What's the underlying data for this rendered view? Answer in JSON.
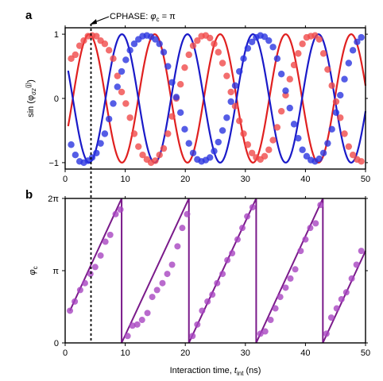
{
  "colors": {
    "red": "#e02020",
    "red_point": "#f04a4a",
    "blue": "#1a1ac8",
    "blue_point": "#2a35e0",
    "purple": "#7a1a8a",
    "purple_point": "#a845c0"
  },
  "chart_data": [
    {
      "panel": "a",
      "type": "scatter",
      "ylabel_text": "sin (φ",
      "ylabel_sub": "σz",
      "ylabel_sup": "(j)",
      "ylabel_tail": ")",
      "xlim": [
        0,
        50
      ],
      "ylim": [
        -1.1,
        1.1
      ],
      "xticks": [
        0,
        10,
        20,
        30,
        40,
        50
      ],
      "xtick_labels": [
        "0",
        "10",
        "20",
        "30",
        "40",
        "50"
      ],
      "yticks": [
        -1,
        0,
        1
      ],
      "ytick_labels": [
        "−1",
        "0",
        "1"
      ],
      "annotation": {
        "text": "CPHASE: ",
        "phi": "φ",
        "sub": "c",
        "tail": " = π",
        "x": 4.3
      },
      "series": [
        {
          "color_key": "red",
          "fit": {
            "freq": 0.0917,
            "phase_x": 4.0,
            "form": "cos"
          },
          "points": [
            [
              1,
              0.62
            ],
            [
              1.7,
              0.68
            ],
            [
              2.4,
              0.82
            ],
            [
              3.1,
              0.9
            ],
            [
              3.8,
              0.97
            ],
            [
              4.5,
              0.98
            ],
            [
              5.2,
              0.97
            ],
            [
              5.9,
              0.9
            ],
            [
              6.6,
              0.85
            ],
            [
              7.3,
              0.75
            ],
            [
              8,
              0.62
            ],
            [
              8.7,
              0.35
            ],
            [
              9.4,
              0.1
            ],
            [
              10.1,
              -0.08
            ],
            [
              10.8,
              -0.3
            ],
            [
              11.5,
              -0.55
            ],
            [
              12.2,
              -0.75
            ],
            [
              12.9,
              -0.88
            ],
            [
              13.6,
              -0.95
            ],
            [
              14.3,
              -1.0
            ],
            [
              15,
              -0.97
            ],
            [
              15.7,
              -0.88
            ],
            [
              16.4,
              -0.78
            ],
            [
              17.1,
              -0.55
            ],
            [
              17.8,
              -0.28
            ],
            [
              18.5,
              0.0
            ],
            [
              19.2,
              0.22
            ],
            [
              19.9,
              0.48
            ],
            [
              20.6,
              0.68
            ],
            [
              21.3,
              0.82
            ],
            [
              22,
              0.9
            ],
            [
              22.7,
              0.97
            ],
            [
              23.4,
              0.98
            ],
            [
              24.1,
              0.94
            ],
            [
              24.8,
              0.85
            ],
            [
              25.5,
              0.72
            ],
            [
              26.2,
              0.55
            ],
            [
              26.9,
              0.35
            ],
            [
              27.6,
              0.1
            ],
            [
              28.3,
              -0.12
            ],
            [
              29,
              -0.35
            ],
            [
              29.7,
              -0.55
            ],
            [
              30.4,
              -0.72
            ],
            [
              31.1,
              -0.85
            ],
            [
              31.8,
              -0.92
            ],
            [
              32.5,
              -0.95
            ],
            [
              33.2,
              -0.9
            ],
            [
              33.9,
              -0.8
            ],
            [
              34.6,
              -0.65
            ],
            [
              35.3,
              -0.45
            ],
            [
              36,
              -0.2
            ],
            [
              36.7,
              0.05
            ],
            [
              37.4,
              0.3
            ],
            [
              38.1,
              0.52
            ],
            [
              38.8,
              0.7
            ],
            [
              39.5,
              0.85
            ],
            [
              40.2,
              0.95
            ],
            [
              40.9,
              0.97
            ],
            [
              41.6,
              0.98
            ],
            [
              42.3,
              0.92
            ],
            [
              43,
              0.7
            ],
            [
              43.7,
              0.45
            ],
            [
              44.4,
              0.2
            ],
            [
              45.1,
              -0.05
            ],
            [
              45.8,
              -0.3
            ],
            [
              46.5,
              -0.55
            ],
            [
              47.2,
              -0.75
            ],
            [
              47.9,
              -0.88
            ],
            [
              48.6,
              -0.95
            ],
            [
              49.3,
              -0.98
            ]
          ]
        },
        {
          "color_key": "blue",
          "fit": {
            "freq": 0.0917,
            "phase_x": 4.0,
            "form": "neg_cos"
          },
          "points": [
            [
              1,
              -0.72
            ],
            [
              1.7,
              -0.88
            ],
            [
              2.4,
              -0.98
            ],
            [
              3.1,
              -1.0
            ],
            [
              3.8,
              -0.97
            ],
            [
              4.5,
              -0.92
            ],
            [
              5.2,
              -0.85
            ],
            [
              5.9,
              -0.7
            ],
            [
              6.6,
              -0.55
            ],
            [
              7.3,
              -0.32
            ],
            [
              8,
              -0.08
            ],
            [
              8.7,
              0.18
            ],
            [
              9.4,
              0.42
            ],
            [
              10.1,
              0.6
            ],
            [
              10.8,
              0.75
            ],
            [
              11.5,
              0.85
            ],
            [
              12.2,
              0.92
            ],
            [
              12.9,
              0.97
            ],
            [
              13.6,
              0.98
            ],
            [
              14.3,
              0.96
            ],
            [
              15,
              0.92
            ],
            [
              15.7,
              0.85
            ],
            [
              16.4,
              0.72
            ],
            [
              17.1,
              0.5
            ],
            [
              17.8,
              0.25
            ],
            [
              18.5,
              0.02
            ],
            [
              19.2,
              -0.22
            ],
            [
              19.9,
              -0.48
            ],
            [
              20.6,
              -0.7
            ],
            [
              21.3,
              -0.85
            ],
            [
              22,
              -0.95
            ],
            [
              22.7,
              -0.98
            ],
            [
              23.4,
              -0.96
            ],
            [
              24.1,
              -0.92
            ],
            [
              24.8,
              -0.82
            ],
            [
              25.5,
              -0.68
            ],
            [
              26.2,
              -0.5
            ],
            [
              26.9,
              -0.3
            ],
            [
              27.6,
              -0.05
            ],
            [
              28.3,
              0.2
            ],
            [
              29,
              0.42
            ],
            [
              29.7,
              0.62
            ],
            [
              30.4,
              0.78
            ],
            [
              31.1,
              0.88
            ],
            [
              31.8,
              0.95
            ],
            [
              32.5,
              0.98
            ],
            [
              33.2,
              0.96
            ],
            [
              33.9,
              0.9
            ],
            [
              34.6,
              0.8
            ],
            [
              35.3,
              0.62
            ],
            [
              36,
              0.38
            ],
            [
              36.7,
              0.12
            ],
            [
              37.4,
              -0.15
            ],
            [
              38.1,
              -0.4
            ],
            [
              38.8,
              -0.62
            ],
            [
              39.5,
              -0.8
            ],
            [
              40.2,
              -0.9
            ],
            [
              40.9,
              -0.96
            ],
            [
              41.6,
              -0.98
            ],
            [
              42.3,
              -0.94
            ],
            [
              43,
              -0.85
            ],
            [
              43.7,
              -0.7
            ],
            [
              44.4,
              -0.48
            ],
            [
              45.1,
              -0.22
            ],
            [
              45.8,
              0.05
            ],
            [
              46.5,
              0.3
            ],
            [
              47.2,
              0.55
            ],
            [
              47.9,
              0.75
            ],
            [
              48.6,
              0.88
            ],
            [
              49.3,
              0.95
            ]
          ]
        }
      ]
    },
    {
      "panel": "b",
      "type": "scatter",
      "ylabel_text": "φ",
      "ylabel_sub": "c",
      "xlabel_text": "Interaction time, ",
      "xlabel_var": "t",
      "xlabel_sub": "int",
      "xlabel_tail": " (ns)",
      "xlim": [
        0,
        50
      ],
      "ylim": [
        0,
        6.2832
      ],
      "xticks": [
        0,
        10,
        20,
        30,
        40,
        50
      ],
      "xtick_labels": [
        "0",
        "10",
        "20",
        "30",
        "40",
        "50"
      ],
      "yticks": [
        0,
        3.1416,
        6.2832
      ],
      "ytick_labels": [
        "0",
        "π",
        "2π"
      ],
      "fit_segments": [
        [
          [
            0.8,
            1.4
          ],
          [
            9.4,
            6.2832
          ]
        ],
        [
          [
            9.4,
            0
          ],
          [
            20.6,
            6.2832
          ]
        ],
        [
          [
            20.6,
            0
          ],
          [
            31.8,
            6.2832
          ]
        ],
        [
          [
            31.8,
            0
          ],
          [
            42.9,
            6.2832
          ]
        ],
        [
          [
            42.9,
            0
          ],
          [
            50,
            4.0
          ]
        ]
      ],
      "points": [
        [
          0.8,
          1.4
        ],
        [
          1.6,
          1.8
        ],
        [
          2.5,
          2.3
        ],
        [
          3.3,
          2.6
        ],
        [
          4.2,
          3.0
        ],
        [
          5.0,
          3.3
        ],
        [
          5.9,
          3.8
        ],
        [
          6.7,
          4.4
        ],
        [
          7.5,
          4.7
        ],
        [
          8.4,
          5.6
        ],
        [
          9.2,
          5.8
        ],
        [
          10.4,
          0.3
        ],
        [
          11.2,
          0.75
        ],
        [
          12,
          0.8
        ],
        [
          12.8,
          1.0
        ],
        [
          13.7,
          1.3
        ],
        [
          14.5,
          2.0
        ],
        [
          15.3,
          2.3
        ],
        [
          16.2,
          2.6
        ],
        [
          17.0,
          3.0
        ],
        [
          17.8,
          3.4
        ],
        [
          18.7,
          4.2
        ],
        [
          19.5,
          5.0
        ],
        [
          20.3,
          5.6
        ],
        [
          21.2,
          0.3
        ],
        [
          22.0,
          0.8
        ],
        [
          22.8,
          1.4
        ],
        [
          23.7,
          1.8
        ],
        [
          24.5,
          2.1
        ],
        [
          25.3,
          2.6
        ],
        [
          26.2,
          3.0
        ],
        [
          27.0,
          3.6
        ],
        [
          27.8,
          3.9
        ],
        [
          28.7,
          4.5
        ],
        [
          29.5,
          5.0
        ],
        [
          30.3,
          5.5
        ],
        [
          31.2,
          5.9
        ],
        [
          32.5,
          0.4
        ],
        [
          33.3,
          0.5
        ],
        [
          34.2,
          1.0
        ],
        [
          35.0,
          1.5
        ],
        [
          35.8,
          2.0
        ],
        [
          36.7,
          2.4
        ],
        [
          37.5,
          2.8
        ],
        [
          38.3,
          3.2
        ],
        [
          39.2,
          4.0
        ],
        [
          40.0,
          4.5
        ],
        [
          40.8,
          5.0
        ],
        [
          41.7,
          5.2
        ],
        [
          42.5,
          6.0
        ],
        [
          43.5,
          0.4
        ],
        [
          44.3,
          1.1
        ],
        [
          45.2,
          1.5
        ],
        [
          46.0,
          1.9
        ],
        [
          46.8,
          2.2
        ],
        [
          47.7,
          2.8
        ],
        [
          48.5,
          3.4
        ],
        [
          49.3,
          4.0
        ]
      ]
    }
  ]
}
